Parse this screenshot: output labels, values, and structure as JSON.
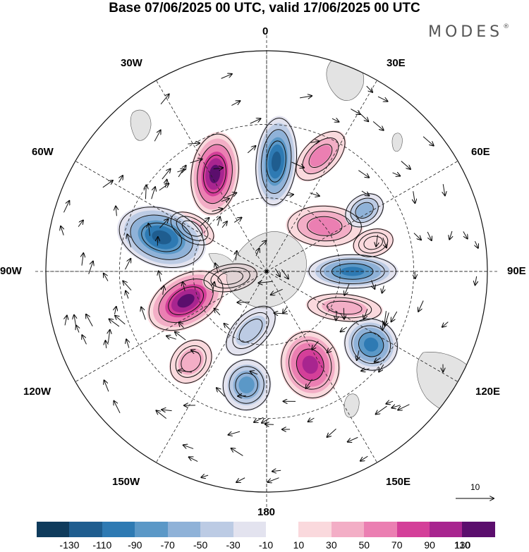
{
  "title": "Base 07/06/2025 00 UTC, valid 17/06/2025 00 UTC",
  "brand": "MODES",
  "brand_mark": "®",
  "longitude_labels": {
    "top": "0",
    "bottom": "180",
    "left": "90W",
    "right": "90E",
    "upper_left_1": "30W",
    "upper_left_2": "60W",
    "upper_right_1": "30E",
    "upper_right_2": "60E",
    "lower_left_1": "120W",
    "lower_left_2": "150W",
    "lower_right_1": "120E",
    "lower_right_2": "150E"
  },
  "reference_vector": {
    "label": "10"
  },
  "colorbar": {
    "colors": [
      "#0f3b5c",
      "#1f5d8f",
      "#2e7ab3",
      "#5b98c7",
      "#8fb2d8",
      "#bccbe4",
      "#e3e3ef",
      "#ffffff",
      "#fad9dd",
      "#f3aec6",
      "#eb7fb2",
      "#d43f99",
      "#a8258f",
      "#5b0e6d"
    ],
    "ticks": [
      "-130",
      "-110",
      "-90",
      "-70",
      "-50",
      "-30",
      "-10",
      "10",
      "30",
      "50",
      "70",
      "90",
      "110",
      "130"
    ]
  },
  "anomalies": [
    {
      "lon": -28,
      "lat": -45,
      "value": 120,
      "shape": [
        120,
        70
      ],
      "rot": 35
    },
    {
      "lon": -60,
      "lat": -55,
      "value": 40,
      "shape": [
        70,
        40
      ],
      "rot": 0
    },
    {
      "lon": 5,
      "lat": -45,
      "value": -120,
      "shape": [
        130,
        60
      ],
      "rot": 0
    },
    {
      "lon": 25,
      "lat": -38,
      "value": 60,
      "shape": [
        90,
        50
      ],
      "rot": 20
    },
    {
      "lon": 52,
      "lat": -60,
      "value": 60,
      "shape": [
        110,
        60
      ],
      "rot": 40
    },
    {
      "lon": 58,
      "lat": -43,
      "value": -60,
      "shape": [
        60,
        45
      ],
      "rot": 0
    },
    {
      "lon": 75,
      "lat": -45,
      "value": 30,
      "shape": [
        60,
        40
      ],
      "rot": 0
    },
    {
      "lon": 90,
      "lat": -55,
      "value": -100,
      "shape": [
        130,
        50
      ],
      "rot": 0
    },
    {
      "lon": 115,
      "lat": -55,
      "value": 40,
      "shape": [
        110,
        40
      ],
      "rot": -20
    },
    {
      "lon": 125,
      "lat": -38,
      "value": -100,
      "shape": [
        80,
        75
      ],
      "rot": 0
    },
    {
      "lon": 155,
      "lat": -48,
      "value": 100,
      "shape": [
        100,
        85
      ],
      "rot": 10
    },
    {
      "lon": -170,
      "lat": -43,
      "value": -80,
      "shape": [
        75,
        70
      ],
      "rot": 0
    },
    {
      "lon": -140,
      "lat": -42,
      "value": 50,
      "shape": [
        70,
        55
      ],
      "rot": 0
    },
    {
      "lon": -165,
      "lat": -65,
      "value": -40,
      "shape": [
        90,
        50
      ],
      "rot": 30
    },
    {
      "lon": -110,
      "lat": -55,
      "value": 130,
      "shape": [
        120,
        75
      ],
      "rot": -10
    },
    {
      "lon": -72,
      "lat": -45,
      "value": -130,
      "shape": [
        130,
        85
      ],
      "rot": 0
    },
    {
      "lon": -100,
      "lat": -75,
      "value": 20,
      "shape": [
        80,
        40
      ],
      "rot": 0
    }
  ]
}
